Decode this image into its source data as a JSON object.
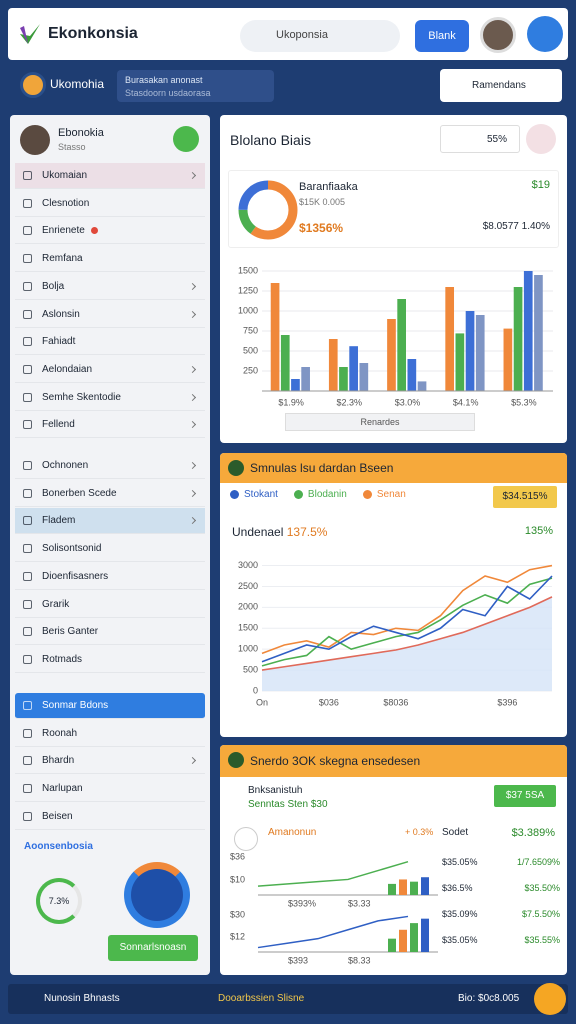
{
  "header": {
    "brand": "Ekonkonsia",
    "search": "Ukoponsia",
    "button": "Blank"
  },
  "subheader": {
    "title": "Ukomohia",
    "notice_title": "Burasakan anonast",
    "notice_subtitle": "Stasdoorn usdaorasa",
    "dropdown": "Ramendans"
  },
  "sidebar": {
    "profile_name": "Ebonokia",
    "profile_subtitle": "Stasso",
    "menu": [
      [
        {
          "label": "Ukomaian",
          "chevron": true,
          "highlight": "pink"
        },
        {
          "label": "Clesnotion"
        },
        {
          "label": "Enrienete",
          "dot": true
        },
        {
          "label": "Remfana"
        },
        {
          "label": "Bolja",
          "chevron": true
        },
        {
          "label": "Aslonsin",
          "chevron": true
        },
        {
          "label": "Fahiadt"
        },
        {
          "label": "Aelondaian",
          "chevron": true
        },
        {
          "label": "Semhe Skentodie",
          "chevron": true
        },
        {
          "label": "Fellend",
          "chevron": true
        }
      ],
      [
        {
          "label": "Ochnonen",
          "chevron": true
        },
        {
          "label": "Bonerben Scede",
          "chevron": true
        },
        {
          "label": "Fladem",
          "chevron": true,
          "highlight": "blue"
        },
        {
          "label": "Solisontsonid"
        },
        {
          "label": "Dioenfisasners"
        },
        {
          "label": "Grarik"
        },
        {
          "label": "Beris Ganter"
        },
        {
          "label": "Rotmads"
        }
      ],
      [
        {
          "label": "Sonmar Bdons",
          "highlight": "primary"
        },
        {
          "label": "Roonah"
        },
        {
          "label": "Bhardn",
          "chevron": true
        },
        {
          "label": "Narlupan"
        },
        {
          "label": "Beisen"
        }
      ]
    ],
    "link": "Aoonsenbosia",
    "gauge_label": "7.3%",
    "button": "Sonnarlsnoasn"
  },
  "panel1": {
    "title": "Blolano Biais",
    "badge": "55%",
    "summary_title": "Baranfiaaka",
    "summary_subtitle": "$15K 0.005",
    "summary_value": "$1356%",
    "summary_right": "$19",
    "summary_right2": "$8.0577 1.40%",
    "donut": {
      "values": [
        60,
        15,
        25
      ],
      "colors": [
        "#f0883a",
        "#4caf50",
        "#3d6fd6"
      ]
    },
    "chart": {
      "type": "bar",
      "categories": [
        "$1.9%",
        "$2.3%",
        "$3.0%",
        "$4.1%",
        "$5.3%"
      ],
      "ylim": [
        0,
        1600
      ],
      "yticks": [
        250,
        500,
        750,
        1000,
        1250,
        1500
      ],
      "series": [
        {
          "color": "#f0883a",
          "values": [
            1350,
            650,
            900,
            1300,
            780
          ]
        },
        {
          "color": "#4caf50",
          "values": [
            700,
            300,
            1150,
            720,
            1300
          ]
        },
        {
          "color": "#3d6fd6",
          "values": [
            150,
            560,
            400,
            1000,
            1500
          ]
        },
        {
          "color": "#7f95c4",
          "values": [
            300,
            350,
            120,
            950,
            1450
          ]
        }
      ]
    },
    "footer": "Renardes"
  },
  "panel2": {
    "title": "Smnulas lsu dardan Bseen",
    "badge": "$34.515%",
    "value_label": "Undenael",
    "value_change": "137.5%",
    "value_right": "135%",
    "chart": {
      "type": "line",
      "categories": [
        "On",
        null,
        null,
        "$036",
        null,
        null,
        "$8036",
        null,
        null,
        null,
        null,
        "$396",
        null,
        null
      ],
      "ylim": [
        0,
        3300
      ],
      "yticks": [
        0,
        500,
        1000,
        1500,
        2000,
        2500,
        3000
      ],
      "series": [
        {
          "name": "Stokant",
          "color": "#2f5fc4",
          "values": [
            700,
            900,
            1100,
            1000,
            1300,
            1550,
            1400,
            1250,
            1500,
            1950,
            1800,
            2500,
            2200,
            2750
          ]
        },
        {
          "name": "Blodanin",
          "color": "#4caf50",
          "values": [
            600,
            750,
            850,
            1300,
            1000,
            1150,
            1300,
            1400,
            1700,
            2050,
            2300,
            2100,
            2550,
            2700
          ]
        },
        {
          "name": "Senan",
          "color": "#f0883a",
          "values": [
            900,
            1100,
            1200,
            1050,
            1400,
            1350,
            1500,
            1450,
            1800,
            2400,
            2750,
            2600,
            2900,
            3000
          ]
        },
        {
          "color": "#e06a5a",
          "fill": "#d4e3f8",
          "values": [
            500,
            580,
            660,
            740,
            820,
            900,
            980,
            1100,
            1250,
            1400,
            1600,
            1800,
            2000,
            2250
          ]
        }
      ]
    }
  },
  "panel3": {
    "title": "Snerdo 3OK skegna ensedesen",
    "row1": "Bnksanistuh",
    "row2": "Senntas Sten $30",
    "badge": "$37 5SA",
    "mini_title": "Amanonun",
    "mini_change": "+ 0.3%",
    "col_title": "Sodet",
    "col_value": "$3.389%",
    "ylabels": [
      "$36",
      "$10",
      "$30",
      "$12"
    ],
    "xlabels": [
      [
        "$393%",
        "$3.33"
      ],
      [
        "$393",
        "$8.33"
      ]
    ],
    "mini_ylim": [
      0,
      36
    ],
    "mini": [
      {
        "line": [
          8,
          10,
          12,
          14,
          22,
          30
        ],
        "bars": [
          10,
          14,
          12,
          16
        ]
      },
      {
        "line": [
          4,
          8,
          12,
          20,
          28,
          32
        ],
        "bars": [
          12,
          20,
          26,
          30
        ]
      }
    ],
    "rows": [
      [
        "$35.05%",
        "1/7.6509%"
      ],
      [
        "$36.5%",
        "$35.50%"
      ],
      [
        "$35.09%",
        "$7.5.50%"
      ],
      [
        "$35.05%",
        "$35.55%"
      ]
    ]
  },
  "footer": {
    "left": "Nunosin Bhnasts",
    "middle": "Dooarbssien Slisne",
    "right": "Bio: $0c8.005"
  }
}
